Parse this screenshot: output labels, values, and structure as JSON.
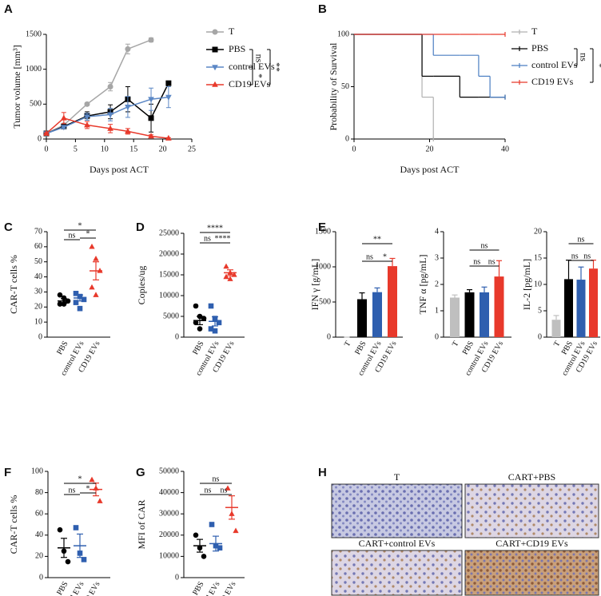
{
  "chart_data": [
    {
      "panel": "A",
      "type": "line",
      "x": [
        0,
        3,
        7,
        11,
        14,
        18,
        21
      ],
      "series": [
        {
          "name": "T",
          "color": "#a6a6a6",
          "marker": "circle",
          "values": [
            80,
            200,
            500,
            750,
            1290,
            1420,
            null
          ],
          "errors": [
            10,
            20,
            20,
            60,
            70,
            30,
            null
          ]
        },
        {
          "name": "PBS",
          "color": "#000000",
          "marker": "square",
          "values": [
            80,
            180,
            330,
            390,
            570,
            300,
            800
          ],
          "errors": [
            10,
            20,
            60,
            100,
            180,
            200,
            0
          ]
        },
        {
          "name": "control EVs",
          "color": "#5b87c5",
          "marker": "triangle-down",
          "values": [
            80,
            170,
            320,
            350,
            460,
            570,
            600
          ],
          "errors": [
            10,
            20,
            50,
            90,
            150,
            160,
            150
          ]
        },
        {
          "name": "CD19 EVs",
          "color": "#e8392b",
          "marker": "triangle",
          "values": [
            80,
            300,
            200,
            150,
            110,
            40,
            10
          ],
          "errors": [
            10,
            80,
            50,
            60,
            40,
            20,
            10
          ]
        }
      ],
      "xlim": [
        0,
        25
      ],
      "xticks": [
        0,
        5,
        10,
        15,
        20,
        25
      ],
      "ylim": [
        0,
        1500
      ],
      "yticks": [
        0,
        500,
        1000,
        1500
      ],
      "xlabel": "Days post ACT",
      "ylabel": "Tumor volume [mm³]",
      "annotations": [
        "ns",
        "*",
        "**"
      ]
    },
    {
      "panel": "B",
      "type": "step",
      "x": [
        0,
        18,
        21,
        28,
        33,
        36,
        40
      ],
      "series": [
        {
          "name": "T",
          "color": "#b0b0b0",
          "values": [
            100,
            40,
            0,
            null,
            null,
            null,
            null
          ]
        },
        {
          "name": "PBS",
          "color": "#000000",
          "values": [
            100,
            60,
            60,
            40,
            40,
            40,
            40
          ]
        },
        {
          "name": "control EVs",
          "color": "#4a7ec2",
          "values": [
            100,
            100,
            80,
            80,
            60,
            40,
            40
          ]
        },
        {
          "name": "CD19 EVs",
          "color": "#e8392b",
          "values": [
            100,
            100,
            100,
            100,
            100,
            100,
            100
          ]
        }
      ],
      "xlim": [
        0,
        40
      ],
      "xticks": [
        0,
        20,
        40
      ],
      "ylim": [
        0,
        100
      ],
      "yticks": [
        0,
        50,
        100
      ],
      "xlabel": "Days post ACT",
      "ylabel": "Probability of Survival",
      "annotations": [
        "ns",
        "*"
      ]
    },
    {
      "panel": "C",
      "type": "dot",
      "categories": [
        "PBS",
        "control EVs",
        "CD19 EVs"
      ],
      "values": [
        [
          28,
          26,
          24,
          22,
          22
        ],
        [
          29,
          27,
          25,
          23,
          19
        ],
        [
          60,
          52,
          44,
          33,
          28
        ]
      ],
      "means": [
        24,
        26,
        44
      ],
      "errors": [
        1.5,
        2,
        6
      ],
      "colors": [
        "#000000",
        "#2f5faf",
        "#e8392b"
      ],
      "markers": [
        "circle",
        "square",
        "triangle"
      ],
      "ylim": [
        0,
        70
      ],
      "yticks": [
        0,
        10,
        20,
        30,
        40,
        50,
        60,
        70
      ],
      "ylabel": "CAR-T cells %",
      "annotations": [
        "*",
        "ns",
        "*"
      ]
    },
    {
      "panel": "D",
      "type": "dot",
      "categories": [
        "PBS",
        "control EVs",
        "CD19 EVs"
      ],
      "values": [
        [
          7500,
          5000,
          4500,
          3500,
          2000
        ],
        [
          7500,
          4500,
          3500,
          2000,
          1500
        ],
        [
          17000,
          15500,
          15000,
          14500,
          14000
        ]
      ],
      "means": [
        4000,
        3800,
        15500
      ],
      "errors": [
        1000,
        1100,
        700
      ],
      "colors": [
        "#000000",
        "#2f5faf",
        "#e8392b"
      ],
      "markers": [
        "circle",
        "square",
        "triangle"
      ],
      "ylim": [
        0,
        25000
      ],
      "yticks": [
        0,
        5000,
        10000,
        15000,
        20000,
        25000
      ],
      "ylabel": "Copies/ug",
      "annotations": [
        "****",
        "ns",
        "****"
      ]
    },
    {
      "panel": "E",
      "type": "bar",
      "categories": [
        "T",
        "PBS",
        "control EVs",
        "CD19 EVs"
      ],
      "values": [
        0,
        540,
        640,
        1010
      ],
      "errors": [
        0,
        90,
        60,
        110
      ],
      "colors": [
        "#bfbfbf",
        "#000000",
        "#2f5faf",
        "#e8392b"
      ],
      "ylim": [
        0,
        1500
      ],
      "yticks": [
        0,
        500,
        1000,
        1500
      ],
      "ylabel": "IFN γ  [g/mL]",
      "annotations": [
        "**",
        "ns",
        "*"
      ]
    },
    {
      "type": "bar",
      "categories": [
        "T",
        "PBS",
        "control EVs",
        "CD19 EVs"
      ],
      "values": [
        1.5,
        1.7,
        1.7,
        2.3
      ],
      "errors": [
        0.1,
        0.1,
        0.2,
        0.6
      ],
      "colors": [
        "#bfbfbf",
        "#000000",
        "#2f5faf",
        "#e8392b"
      ],
      "ylim": [
        0,
        4
      ],
      "yticks": [
        0,
        1,
        2,
        3,
        4
      ],
      "ylabel": "TNF α  [pg/mL]",
      "annotations": [
        "ns",
        "ns",
        "ns"
      ]
    },
    {
      "type": "bar",
      "categories": [
        "T",
        "PBS",
        "control EVs",
        "CD19 EVs"
      ],
      "values": [
        3.3,
        11,
        10.9,
        13
      ],
      "errors": [
        0.8,
        3.6,
        2.4,
        1.6
      ],
      "colors": [
        "#bfbfbf",
        "#000000",
        "#2f5faf",
        "#e8392b"
      ],
      "ylim": [
        0,
        20
      ],
      "yticks": [
        0,
        5,
        10,
        15,
        20
      ],
      "ylabel": "IL-2  [pg/mL]",
      "annotations": [
        "ns",
        "ns",
        "ns"
      ]
    },
    {
      "panel": "F",
      "type": "dot",
      "categories": [
        "PBS",
        "control EVs",
        "CD19 EVs"
      ],
      "values": [
        [
          45,
          25,
          15
        ],
        [
          47,
          23,
          17
        ],
        [
          92,
          84,
          72
        ]
      ],
      "means": [
        28,
        30,
        83
      ],
      "errors": [
        9,
        11,
        6
      ],
      "colors": [
        "#000000",
        "#2f5faf",
        "#e8392b"
      ],
      "markers": [
        "circle",
        "square",
        "triangle"
      ],
      "ylim": [
        0,
        100
      ],
      "yticks": [
        0,
        20,
        40,
        60,
        80,
        100
      ],
      "ylabel": "CAR-T cells %",
      "annotations": [
        "*",
        "ns",
        "*"
      ]
    },
    {
      "panel": "G",
      "type": "dot",
      "categories": [
        "PBS",
        "control EVs",
        "CD19 EVs"
      ],
      "values": [
        [
          20000,
          14000,
          10000
        ],
        [
          25000,
          15000,
          14000
        ],
        [
          42000,
          30000,
          22000
        ]
      ],
      "means": [
        15000,
        16000,
        33000
      ],
      "errors": [
        3000,
        3500,
        5500
      ],
      "colors": [
        "#000000",
        "#2f5faf",
        "#e8392b"
      ],
      "markers": [
        "circle",
        "square",
        "triangle"
      ],
      "ylim": [
        0,
        50000
      ],
      "yticks": [
        0,
        10000,
        20000,
        30000,
        40000,
        50000
      ],
      "ylabel": "MFI of CAR",
      "annotations": [
        "ns",
        "ns",
        "ns"
      ]
    }
  ],
  "panel_H": {
    "panel": "H",
    "images": [
      "T",
      "CART+PBS",
      "CART+control EVs",
      "CART+CD19 EVs"
    ]
  }
}
